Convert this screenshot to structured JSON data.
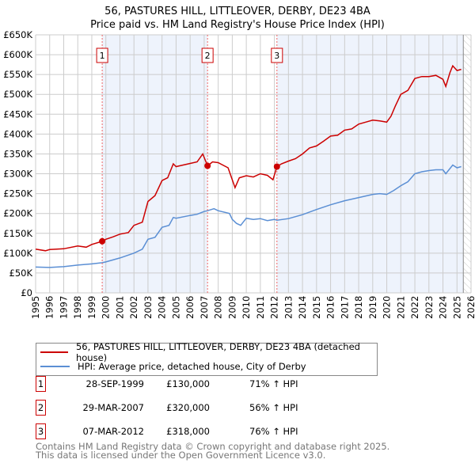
{
  "title_line1": "56, PASTURES HILL, LITTLEOVER, DERBY, DE23 4BA",
  "title_line2": "Price paid vs. HM Land Registry's House Price Index (HPI)",
  "chart_data": {
    "type": "line",
    "title": "56, PASTURES HILL, LITTLEOVER, DERBY, DE23 4BA - Price paid vs. HM Land Registry's House Price Index (HPI)",
    "xlim": [
      1995,
      2026
    ],
    "ylim": [
      0,
      650000
    ],
    "x_ticks": [
      "1995",
      "1996",
      "1997",
      "1998",
      "1999",
      "2000",
      "2001",
      "2002",
      "2003",
      "2004",
      "2005",
      "2006",
      "2007",
      "2008",
      "2009",
      "2010",
      "2011",
      "2012",
      "2013",
      "2014",
      "2015",
      "2016",
      "2017",
      "2018",
      "2019",
      "2020",
      "2021",
      "2022",
      "2023",
      "2024",
      "2025",
      "2026"
    ],
    "y_ticks": [
      {
        "v": 0,
        "label": "£0"
      },
      {
        "v": 50000,
        "label": "£50K"
      },
      {
        "v": 100000,
        "label": "£100K"
      },
      {
        "v": 150000,
        "label": "£150K"
      },
      {
        "v": 200000,
        "label": "£200K"
      },
      {
        "v": 250000,
        "label": "£250K"
      },
      {
        "v": 300000,
        "label": "£300K"
      },
      {
        "v": 350000,
        "label": "£350K"
      },
      {
        "v": 400000,
        "label": "£400K"
      },
      {
        "v": 450000,
        "label": "£450K"
      },
      {
        "v": 500000,
        "label": "£500K"
      },
      {
        "v": 550000,
        "label": "£550K"
      },
      {
        "v": 600000,
        "label": "£600K"
      },
      {
        "v": 650000,
        "label": "£650K"
      }
    ],
    "grid": true,
    "data_end": 2025.45,
    "colors": {
      "property": "#cc0000",
      "hpi": "#5b8fd4",
      "shade": "#eef3fc"
    },
    "series": [
      {
        "name": "56, PASTURES HILL, LITTLEOVER, DERBY, DE23 4BA (detached house)",
        "key": "property",
        "x": [
          1995,
          1995.7,
          1996,
          1997,
          1998,
          1998.6,
          1999,
          1999.75,
          2000,
          2000.5,
          2001,
          2001.6,
          2002,
          2002.6,
          2003,
          2003.5,
          2004,
          2004.4,
          2004.8,
          2005,
          2005.5,
          2006,
          2006.5,
          2006.9,
          2007.24,
          2007.6,
          2008,
          2008.7,
          2009,
          2009.2,
          2009.5,
          2010,
          2010.5,
          2011,
          2011.5,
          2011.9,
          2012.18,
          2012.5,
          2013,
          2013.5,
          2014,
          2014.5,
          2015,
          2015.5,
          2016,
          2016.5,
          2017,
          2017.5,
          2018,
          2018.5,
          2019,
          2019.5,
          2020,
          2020.3,
          2020.6,
          2021,
          2021.5,
          2022,
          2022.5,
          2023,
          2023.5,
          2024,
          2024.2,
          2024.5,
          2024.7,
          2025,
          2025.3
        ],
        "y": [
          110000,
          106000,
          109000,
          111000,
          118000,
          115000,
          122000,
          130000,
          135000,
          141000,
          148000,
          152000,
          170000,
          178000,
          230000,
          245000,
          283000,
          290000,
          325000,
          318000,
          322000,
          326000,
          330000,
          350000,
          320000,
          330000,
          328000,
          315000,
          285000,
          265000,
          290000,
          295000,
          292000,
          300000,
          296000,
          285000,
          318000,
          325000,
          332000,
          338000,
          350000,
          365000,
          370000,
          382000,
          395000,
          397000,
          410000,
          413000,
          425000,
          430000,
          435000,
          433000,
          430000,
          445000,
          470000,
          500000,
          510000,
          540000,
          545000,
          545000,
          548000,
          538000,
          520000,
          555000,
          572000,
          560000,
          563000
        ]
      },
      {
        "name": "HPI: Average price, detached house, City of Derby",
        "key": "hpi",
        "x": [
          1995,
          1996,
          1997,
          1998,
          1999,
          1999.75,
          2000,
          2001,
          2002,
          2002.6,
          2003,
          2003.5,
          2004,
          2004.5,
          2004.8,
          2005,
          2006,
          2006.5,
          2007,
          2007.24,
          2007.7,
          2008,
          2008.8,
          2009,
          2009.3,
          2009.6,
          2010,
          2010.5,
          2011,
          2011.5,
          2012,
          2012.18,
          2013,
          2014,
          2015,
          2016,
          2017,
          2018,
          2019,
          2019.5,
          2020,
          2020.5,
          2021,
          2021.5,
          2022,
          2022.5,
          2023,
          2023.5,
          2024,
          2024.2,
          2024.7,
          2025,
          2025.3
        ],
        "y": [
          65000,
          64000,
          66000,
          70000,
          73000,
          76000,
          78000,
          88000,
          100000,
          110000,
          135000,
          140000,
          165000,
          170000,
          190000,
          188000,
          195000,
          198000,
          205000,
          207000,
          212000,
          207000,
          200000,
          185000,
          175000,
          170000,
          188000,
          185000,
          187000,
          182000,
          185000,
          183000,
          187000,
          197000,
          210000,
          222000,
          232000,
          240000,
          248000,
          250000,
          248000,
          258000,
          270000,
          280000,
          300000,
          305000,
          308000,
          310000,
          310000,
          300000,
          322000,
          315000,
          318000
        ]
      }
    ],
    "sales": [
      {
        "id": "1",
        "x": 1999.74,
        "y": 130000
      },
      {
        "id": "2",
        "x": 2007.24,
        "y": 320000
      },
      {
        "id": "3",
        "x": 2012.18,
        "y": 318000
      }
    ]
  },
  "legend": {
    "property_label": "56, PASTURES HILL, LITTLEOVER, DERBY, DE23 4BA (detached house)",
    "hpi_label": "HPI: Average price, detached house, City of Derby"
  },
  "sales_table": [
    {
      "num": "1",
      "date": "28-SEP-1999",
      "price": "£130,000",
      "hpi": "71% ↑ HPI"
    },
    {
      "num": "2",
      "date": "29-MAR-2007",
      "price": "£320,000",
      "hpi": "56% ↑ HPI"
    },
    {
      "num": "3",
      "date": "07-MAR-2012",
      "price": "£318,000",
      "hpi": "76% ↑ HPI"
    }
  ],
  "footer": {
    "line1": "Contains HM Land Registry data © Crown copyright and database right 2025.",
    "line2": "This data is licensed under the Open Government Licence v3.0."
  }
}
